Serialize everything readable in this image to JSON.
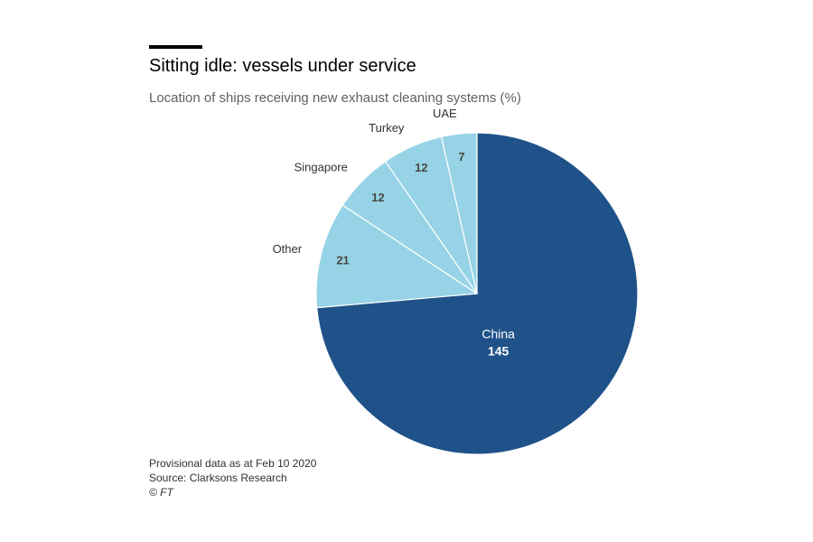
{
  "header": {
    "title": "Sitting idle: vessels under service",
    "subtitle": "Location of ships receiving new exhaust cleaning systems (%)"
  },
  "chart_data": {
    "type": "pie",
    "title": "Sitting idle: vessels under service",
    "subtitle": "Location of ships receiving new exhaust cleaning systems (%)",
    "categories": [
      "China",
      "Other",
      "Singapore",
      "Turkey",
      "UAE"
    ],
    "values": [
      145,
      21,
      12,
      12,
      7
    ],
    "colors": [
      "#1f5289",
      "#96d3e6",
      "#96d3e6",
      "#96d3e6",
      "#96d3e6"
    ],
    "label_colors": [
      "#ffffff",
      "#4a4744",
      "#4a4744",
      "#4a4744",
      "#4a4744"
    ],
    "start": "12 o'clock",
    "direction": "clockwise",
    "category_label_placement": [
      "inside",
      "outside",
      "outside",
      "outside",
      "outside"
    ]
  },
  "footer": {
    "note": "Provisional data as at Feb 10 2020",
    "source": "Source: Clarksons Research",
    "credit": "© FT"
  }
}
